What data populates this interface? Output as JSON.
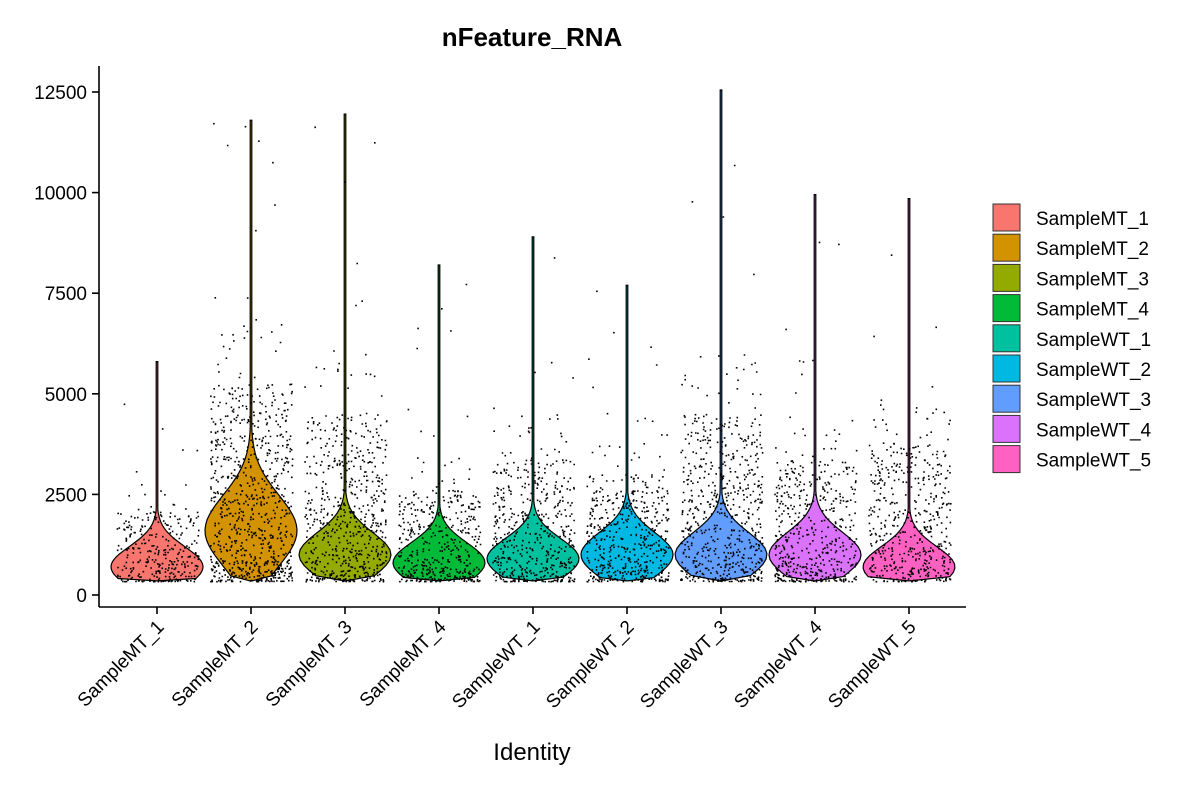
{
  "chart_data": {
    "type": "violin",
    "title": "nFeature_RNA",
    "xlabel": "Identity",
    "ylabel": "",
    "ylim": [
      0,
      13000
    ],
    "yticks": [
      0,
      2500,
      5000,
      7500,
      10000,
      12500
    ],
    "categories": [
      "SampleMT_1",
      "SampleMT_2",
      "SampleMT_3",
      "SampleMT_4",
      "SampleWT_1",
      "SampleWT_2",
      "SampleWT_3",
      "SampleWT_4",
      "SampleWT_5"
    ],
    "legend": {
      "placement": "right"
    },
    "series": [
      {
        "name": "SampleMT_1",
        "color": "#F8766D",
        "min": 350,
        "mode": 700,
        "max": 5800,
        "dense_max": 2800,
        "points": 2500
      },
      {
        "name": "SampleMT_2",
        "color": "#D39200",
        "min": 350,
        "mode": 1600,
        "max": 11800,
        "dense_max": 7000,
        "points": 6500
      },
      {
        "name": "SampleMT_3",
        "color": "#93AA00",
        "min": 350,
        "mode": 1000,
        "max": 11950,
        "dense_max": 6000,
        "points": 5000
      },
      {
        "name": "SampleMT_4",
        "color": "#00BA38",
        "min": 350,
        "mode": 800,
        "max": 8200,
        "dense_max": 3500,
        "points": 3500
      },
      {
        "name": "SampleWT_1",
        "color": "#00C19F",
        "min": 350,
        "mode": 900,
        "max": 8900,
        "dense_max": 4500,
        "points": 4000
      },
      {
        "name": "SampleWT_2",
        "color": "#00B9E3",
        "min": 350,
        "mode": 1000,
        "max": 7700,
        "dense_max": 4000,
        "points": 4000
      },
      {
        "name": "SampleWT_3",
        "color": "#619CFF",
        "min": 350,
        "mode": 1000,
        "max": 12550,
        "dense_max": 6000,
        "points": 5000
      },
      {
        "name": "SampleWT_4",
        "color": "#DB72FB",
        "min": 350,
        "mode": 1000,
        "max": 9950,
        "dense_max": 4500,
        "points": 4000
      },
      {
        "name": "SampleWT_5",
        "color": "#FF61C3",
        "min": 350,
        "mode": 700,
        "max": 9850,
        "dense_max": 5000,
        "points": 4000
      }
    ]
  }
}
